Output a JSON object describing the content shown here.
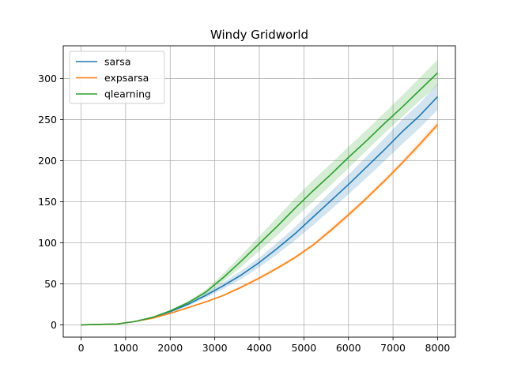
{
  "chart_data": {
    "type": "line",
    "title": "Windy Gridworld",
    "xlabel": "",
    "ylabel": "",
    "xlim": [
      -400,
      8400
    ],
    "ylim": [
      -15,
      340
    ],
    "xticks": [
      0,
      1000,
      2000,
      3000,
      4000,
      5000,
      6000,
      7000,
      8000
    ],
    "yticks": [
      0,
      50,
      100,
      150,
      200,
      250,
      300
    ],
    "grid": true,
    "legend_position": "top-left",
    "series": [
      {
        "name": "sarsa",
        "color": "#1f77b4",
        "band_color": "#1f77b4",
        "x": [
          0,
          800,
          1200,
          1600,
          2000,
          2400,
          2800,
          3200,
          3600,
          4000,
          4400,
          4800,
          5200,
          5600,
          6000,
          6400,
          6800,
          7200,
          7600,
          8000
        ],
        "y": [
          0,
          1,
          4,
          9,
          16,
          25,
          36,
          48,
          61,
          76,
          93,
          111,
          131,
          151,
          171,
          192,
          213,
          235,
          255,
          278
        ],
        "lower": [
          0,
          1,
          4,
          9,
          15,
          23,
          33,
          44,
          56,
          70,
          86,
          103,
          121,
          140,
          159,
          179,
          199,
          220,
          240,
          262
        ],
        "upper": [
          0,
          1,
          4,
          9,
          17,
          27,
          39,
          52,
          66,
          82,
          100,
          119,
          141,
          162,
          183,
          205,
          227,
          250,
          270,
          294
        ]
      },
      {
        "name": "expsarsa",
        "color": "#ff7f0e",
        "band_color": "#ff7f0e",
        "x": [
          0,
          800,
          1200,
          1600,
          2000,
          2400,
          2800,
          3200,
          3600,
          4000,
          4400,
          4800,
          5200,
          5600,
          6000,
          6400,
          6800,
          7200,
          7600,
          8000
        ],
        "y": [
          0,
          1,
          4,
          8,
          14,
          21,
          28,
          36,
          46,
          57,
          69,
          82,
          97,
          115,
          134,
          154,
          175,
          197,
          220,
          244
        ],
        "lower": [
          0,
          1,
          4,
          8,
          13,
          20,
          27,
          35,
          44,
          55,
          67,
          80,
          95,
          112,
          131,
          151,
          172,
          194,
          216,
          240
        ],
        "upper": [
          0,
          1,
          4,
          8,
          15,
          22,
          29,
          37,
          48,
          59,
          71,
          84,
          99,
          118,
          137,
          157,
          178,
          200,
          224,
          248
        ]
      },
      {
        "name": "qlearning",
        "color": "#2ca02c",
        "band_color": "#2ca02c",
        "x": [
          0,
          800,
          1200,
          1600,
          2000,
          2400,
          2800,
          3200,
          3600,
          4000,
          4400,
          4800,
          5200,
          5600,
          6000,
          6400,
          6800,
          7200,
          7600,
          8000
        ],
        "y": [
          0,
          1,
          4,
          9,
          17,
          27,
          40,
          58,
          78,
          99,
          120,
          142,
          163,
          183,
          204,
          224,
          245,
          265,
          286,
          307
        ],
        "lower": [
          0,
          1,
          4,
          9,
          16,
          25,
          37,
          53,
          71,
          90,
          109,
          130,
          150,
          170,
          191,
          212,
          233,
          253,
          273,
          292
        ],
        "upper": [
          0,
          1,
          4,
          9,
          18,
          29,
          43,
          63,
          85,
          108,
          131,
          154,
          176,
          196,
          217,
          237,
          258,
          279,
          301,
          323
        ]
      }
    ]
  }
}
